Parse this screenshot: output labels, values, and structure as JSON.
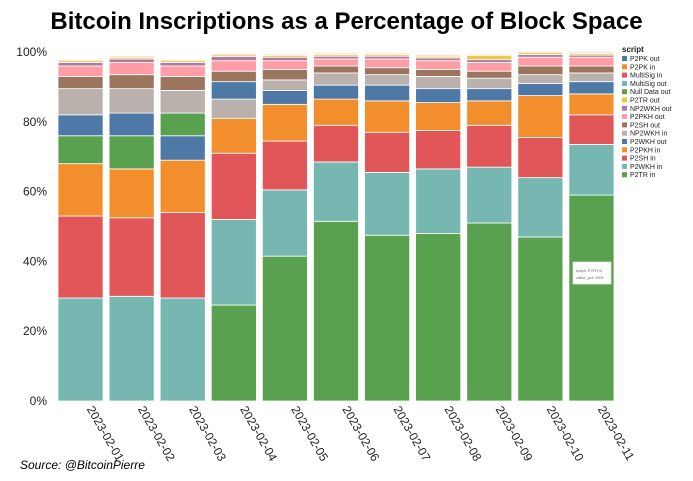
{
  "title": "Bitcoin Inscriptions as a Percentage of Block Space",
  "source": "Source: @BitcoinPierre",
  "legend": {
    "title": "script",
    "items": [
      {
        "name": "P2PK out",
        "color": "#4e79a7"
      },
      {
        "name": "P2PK in",
        "color": "#f28e2b"
      },
      {
        "name": "MultiSig in",
        "color": "#e15759"
      },
      {
        "name": "MultiSig out",
        "color": "#76b7b2"
      },
      {
        "name": "Null Data out",
        "color": "#59a14f"
      },
      {
        "name": "P2TR out",
        "color": "#edc948"
      },
      {
        "name": "NP2WKH out",
        "color": "#b07aa1"
      },
      {
        "name": "P2PKH out",
        "color": "#ff9da7"
      },
      {
        "name": "P2SH out",
        "color": "#9c755f"
      },
      {
        "name": "NP2WKH in",
        "color": "#bab0ac"
      },
      {
        "name": "P2WKH out",
        "color": "#4e79a7"
      },
      {
        "name": "P2PKH in",
        "color": "#f28e2b"
      },
      {
        "name": "P2SH in",
        "color": "#e15759"
      },
      {
        "name": "P2WKH in",
        "color": "#76b7b2"
      },
      {
        "name": "P2TR in",
        "color": "#59a14f"
      }
    ]
  },
  "tooltip": {
    "line1": "script: P2TR in",
    "line2": "value_pct: 59%"
  },
  "chart_data": {
    "type": "bar",
    "stacked": true,
    "title": "Bitcoin Inscriptions as a Percentage of Block Space",
    "xlabel": "",
    "ylabel": "",
    "ylim": [
      0,
      100
    ],
    "yticks": [
      "0%",
      "20%",
      "40%",
      "60%",
      "80%",
      "100%"
    ],
    "grid": false,
    "legend_position": "right",
    "categories": [
      "2023-02-01",
      "2023-02-02",
      "2023-02-03",
      "2023-02-04",
      "2023-02-05",
      "2023-02-06",
      "2023-02-07",
      "2023-02-08",
      "2023-02-09",
      "2023-02-10",
      "2023-02-11"
    ],
    "series": [
      {
        "name": "P2TR in",
        "color": "#59a14f",
        "values": [
          0,
          0,
          0,
          27.5,
          41.5,
          51.5,
          47.5,
          48,
          51,
          47,
          59
        ]
      },
      {
        "name": "P2WKH in",
        "color": "#76b7b2",
        "values": [
          29.5,
          30,
          29.5,
          24.5,
          19,
          17,
          18,
          18.5,
          16,
          17,
          14.5
        ]
      },
      {
        "name": "P2SH in",
        "color": "#e15759",
        "values": [
          23.5,
          22.5,
          24.5,
          19,
          14,
          10.5,
          11.5,
          11,
          12,
          11.5,
          8.5
        ]
      },
      {
        "name": "P2PKH in",
        "color": "#f28e2b",
        "values": [
          15,
          14,
          15,
          10,
          10.5,
          7.5,
          9,
          8,
          7,
          12,
          6
        ]
      },
      {
        "name": "P2WKH out",
        "color": "#4e79a7",
        "values": [
          0,
          0,
          7,
          0,
          4,
          4,
          4.5,
          4,
          3.5,
          3.5,
          3.5
        ]
      },
      {
        "name": "NP2WKH in",
        "color": "#bab0ac",
        "values": [
          0,
          0,
          0,
          5.5,
          0,
          0,
          0,
          0,
          0,
          0,
          0
        ]
      },
      {
        "name": "P2SH out",
        "color": "#9c755f",
        "values": [
          0,
          0,
          0,
          0,
          0,
          0,
          0,
          0,
          0,
          0,
          0
        ]
      },
      {
        "name": "P2PKH out",
        "color": "#ff9da7",
        "values": [
          0,
          0,
          0,
          0,
          0,
          0,
          0,
          0,
          0,
          0,
          0
        ]
      },
      {
        "name": "NP2WKH out",
        "color": "#b07aa1",
        "values": [
          0,
          0,
          0,
          0,
          0,
          0,
          0,
          0,
          0,
          0,
          0
        ]
      },
      {
        "name": "P2TR out",
        "color": "#edc948",
        "values": [
          0,
          0,
          0,
          0,
          0,
          0,
          0,
          0,
          0,
          0,
          0
        ]
      },
      {
        "name": "Null Data out",
        "color": "#59a14f",
        "values": [
          8,
          9.5,
          6.5,
          0,
          0,
          0,
          0,
          0,
          0,
          0,
          0
        ]
      },
      {
        "name": "MultiSig out",
        "color": "#76b7b2",
        "values": [
          0,
          0,
          0,
          0,
          0,
          0,
          0,
          0,
          0,
          0,
          0
        ]
      },
      {
        "name": "MultiSig in",
        "color": "#e15759",
        "values": [
          0,
          0,
          0,
          0,
          0,
          0,
          0,
          0,
          0,
          0,
          0
        ]
      },
      {
        "name": "P2PK in",
        "color": "#f28e2b",
        "values": [
          0,
          0,
          0,
          0,
          0,
          0,
          0,
          0,
          0,
          0,
          0
        ]
      },
      {
        "name": "P2PK out",
        "color": "#4e79a7",
        "values": [
          6,
          6.5,
          0,
          5,
          0,
          0,
          0,
          0,
          0,
          0,
          0
        ]
      },
      {
        "name": "NP2WKH in ",
        "color": "#bab0ac",
        "values": [
          7.5,
          7,
          6.5,
          0,
          3,
          3.5,
          3,
          3.5,
          3,
          2.5,
          2.5
        ]
      },
      {
        "name": "P2SH out ",
        "color": "#9c755f",
        "values": [
          3.5,
          4,
          4,
          3,
          3,
          2,
          2,
          2,
          2,
          2.5,
          2
        ]
      },
      {
        "name": "P2PKH out ",
        "color": "#ff9da7",
        "values": [
          3,
          3.5,
          3,
          3,
          2.5,
          2,
          2.5,
          2.5,
          2.5,
          2.5,
          2.5
        ]
      },
      {
        "name": "NP2WKH out ",
        "color": "#b07aa1",
        "values": [
          1,
          1,
          1,
          1.2,
          1,
          0.8,
          0.8,
          0.8,
          0.8,
          0.8,
          0.6
        ]
      },
      {
        "name": "P2TR out ",
        "color": "#edc948",
        "values": [
          0.5,
          0.5,
          0.5,
          0.5,
          0.5,
          0.5,
          0.5,
          0.5,
          1.2,
          0.5,
          0.5
        ]
      },
      {
        "name": "P2PK in ",
        "color": "#f28e2b",
        "values": [
          0.3,
          0.3,
          0.3,
          0.3,
          0.3,
          0.3,
          0.3,
          0.3,
          0.3,
          0.3,
          0.3
        ]
      }
    ]
  }
}
